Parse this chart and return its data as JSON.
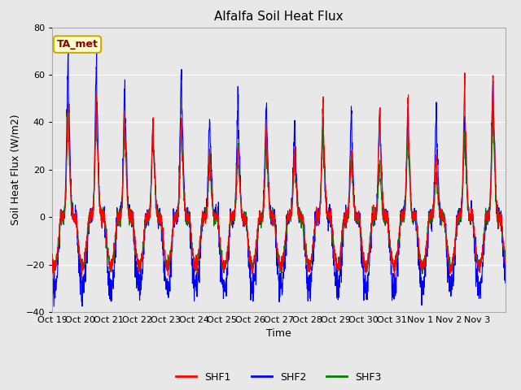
{
  "title": "Alfalfa Soil Heat Flux",
  "ylabel": "Soil Heat Flux (W/m2)",
  "xlabel": "Time",
  "ylim": [
    -40,
    80
  ],
  "yticks": [
    -40,
    -20,
    0,
    20,
    40,
    60,
    80
  ],
  "bg_color": "#e8e8e8",
  "colors": {
    "SHF1": "red",
    "SHF2": "blue",
    "SHF3": "green"
  },
  "legend_label": "TA_met",
  "n_days": 16,
  "pts_per_day": 144,
  "xtick_labels": [
    "Oct 19",
    "Oct 20",
    "Oct 21",
    "Oct 22",
    "Oct 23",
    "Oct 24",
    "Oct 25",
    "Oct 26",
    "Oct 27",
    "Oct 28",
    "Oct 29",
    "Oct 30",
    "Oct 31",
    "Nov 1",
    "Nov 2",
    "Nov 3"
  ],
  "day_peak_amps_shf1": [
    47,
    49,
    45,
    41,
    42,
    28,
    29,
    39,
    28,
    50,
    27,
    45,
    50,
    26,
    58,
    60
  ],
  "day_peak_amps_shf2": [
    70,
    67,
    57,
    41,
    63,
    44,
    51,
    50,
    40,
    41,
    46,
    46,
    45,
    45,
    41,
    61
  ],
  "day_peak_amps_shf3": [
    47,
    46,
    41,
    40,
    40,
    26,
    30,
    33,
    26,
    40,
    26,
    22,
    35,
    20,
    38,
    45
  ],
  "night_amp_shf1": -21,
  "night_amp_shf2": -30,
  "night_amp_shf3": -21,
  "title_fontsize": 11,
  "label_fontsize": 9,
  "tick_fontsize": 8,
  "linewidth": 0.8
}
